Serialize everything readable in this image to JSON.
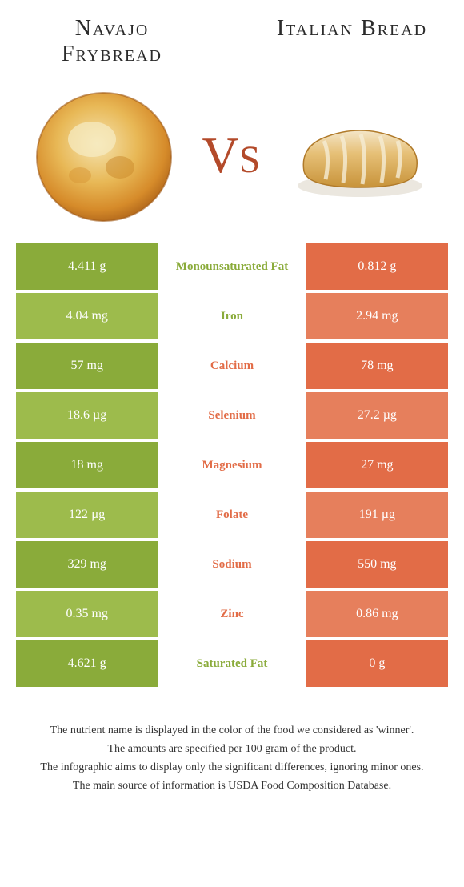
{
  "colors": {
    "green_dark": "#8aab3a",
    "green_light": "#9dbb4c",
    "orange_dark": "#e26c47",
    "orange_light": "#e67f5c",
    "mid_bg": "#ffffff",
    "vs_color": "#b34a2a",
    "title_color": "#2b2b2b"
  },
  "left_food": {
    "name": "Navajo Frybread"
  },
  "right_food": {
    "name": "Italian Bread"
  },
  "vs_label": {
    "v": "V",
    "s": "S"
  },
  "rows": [
    {
      "left": "4.411 g",
      "name": "Monounsaturated Fat",
      "right": "0.812 g",
      "winner": "left"
    },
    {
      "left": "4.04 mg",
      "name": "Iron",
      "right": "2.94 mg",
      "winner": "left"
    },
    {
      "left": "57 mg",
      "name": "Calcium",
      "right": "78 mg",
      "winner": "right"
    },
    {
      "left": "18.6 µg",
      "name": "Selenium",
      "right": "27.2 µg",
      "winner": "right"
    },
    {
      "left": "18 mg",
      "name": "Magnesium",
      "right": "27 mg",
      "winner": "right"
    },
    {
      "left": "122 µg",
      "name": "Folate",
      "right": "191 µg",
      "winner": "right"
    },
    {
      "left": "329 mg",
      "name": "Sodium",
      "right": "550 mg",
      "winner": "right"
    },
    {
      "left": "0.35 mg",
      "name": "Zinc",
      "right": "0.86 mg",
      "winner": "right"
    },
    {
      "left": "4.621 g",
      "name": "Saturated Fat",
      "right": "0 g",
      "winner": "left"
    }
  ],
  "footer": {
    "line1": "The nutrient name is displayed in the color of the food we considered as 'winner'.",
    "line2": "The amounts are specified per 100 gram of the product.",
    "line3": "The infographic aims to display only the significant differences, ignoring minor ones.",
    "line4": "The main source of information is USDA Food Composition Database."
  }
}
